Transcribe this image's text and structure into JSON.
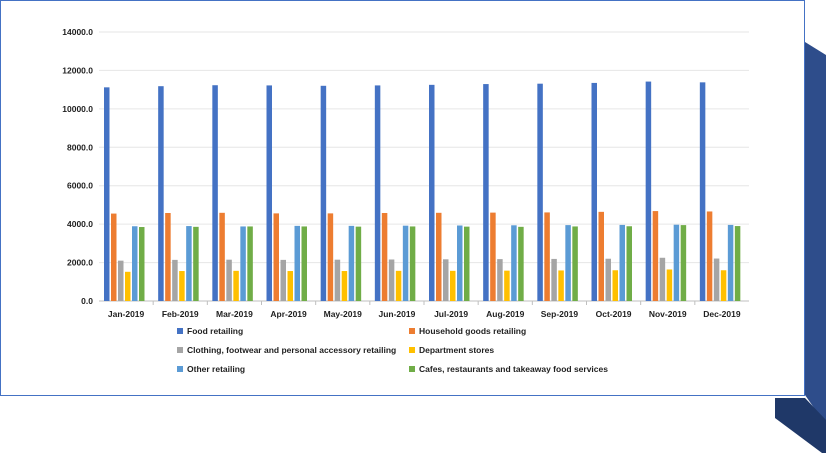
{
  "chart_data": {
    "type": "bar",
    "categories": [
      "Jan-2019",
      "Feb-2019",
      "Mar-2019",
      "Apr-2019",
      "May-2019",
      "Jun-2019",
      "Jul-2019",
      "Aug-2019",
      "Sep-2019",
      "Oct-2019",
      "Nov-2019",
      "Dec-2019"
    ],
    "y_ticks": [
      "0.0",
      "2000.0",
      "4000.0",
      "6000.0",
      "8000.0",
      "10000.0",
      "12000.0",
      "14000.0"
    ],
    "ylim": [
      0,
      14000
    ],
    "grid": true,
    "legend_position": "bottom",
    "series": [
      {
        "name": "Food retailing",
        "color": "#4472c4",
        "values": [
          11120,
          11180,
          11230,
          11220,
          11200,
          11220,
          11250,
          11290,
          11310,
          11350,
          11420,
          11380
        ]
      },
      {
        "name": "Household goods retailing",
        "color": "#ed7d31",
        "values": [
          4550,
          4580,
          4590,
          4560,
          4560,
          4580,
          4590,
          4600,
          4610,
          4640,
          4680,
          4660
        ]
      },
      {
        "name": "Clothing, footwear and personal accessory retailing",
        "color": "#a5a5a5",
        "values": [
          2100,
          2140,
          2150,
          2140,
          2150,
          2160,
          2170,
          2180,
          2190,
          2200,
          2250,
          2210
        ]
      },
      {
        "name": "Department stores",
        "color": "#ffc000",
        "values": [
          1520,
          1560,
          1570,
          1560,
          1560,
          1570,
          1570,
          1580,
          1590,
          1600,
          1640,
          1600
        ]
      },
      {
        "name": "Other retailing",
        "color": "#5b9bd5",
        "values": [
          3890,
          3900,
          3880,
          3910,
          3910,
          3920,
          3930,
          3940,
          3950,
          3960,
          3970,
          3960
        ]
      },
      {
        "name": "Cafes, restaurants and takeaway food services",
        "color": "#70ad47",
        "values": [
          3850,
          3860,
          3880,
          3880,
          3870,
          3880,
          3870,
          3860,
          3880,
          3890,
          3950,
          3900
        ]
      }
    ]
  }
}
